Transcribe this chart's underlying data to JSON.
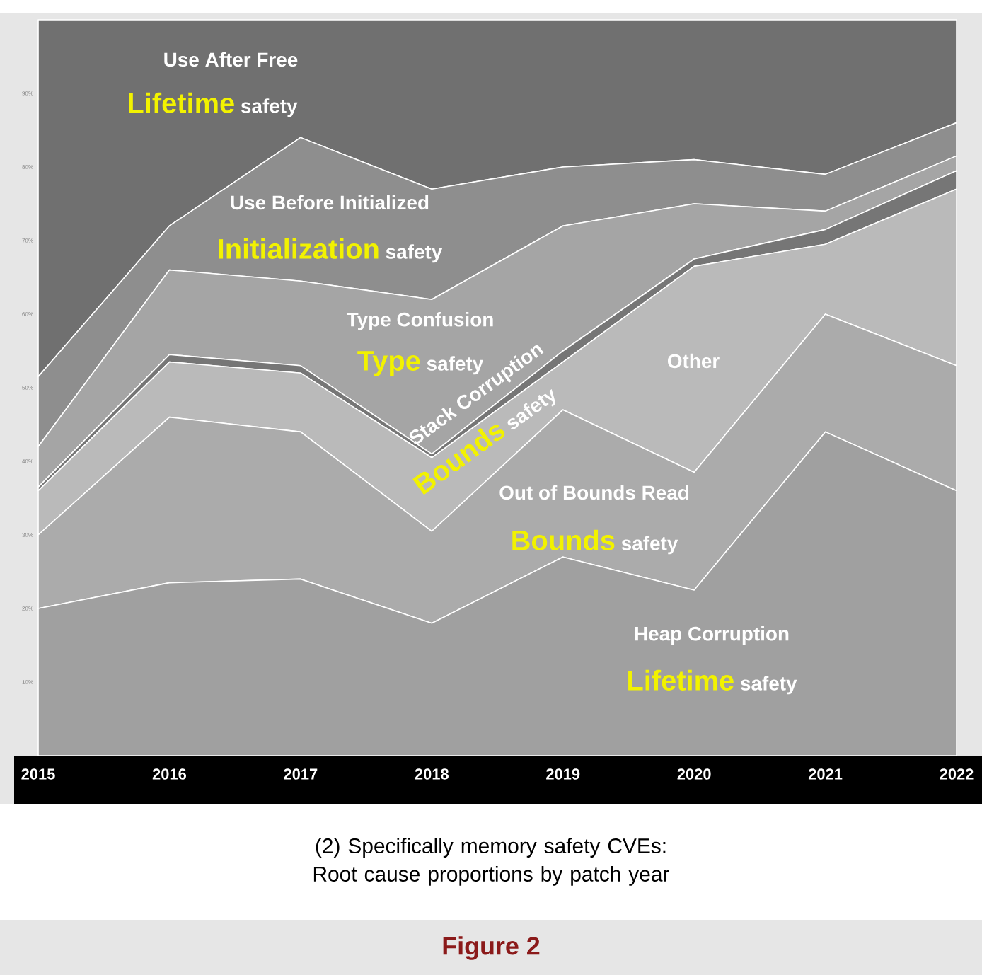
{
  "chart_data": {
    "type": "area",
    "stacked": true,
    "title": "Figure 2",
    "subtitle": "(2) Specifically memory safety CVEs: Root cause proportions by patch year",
    "x": [
      2015,
      2016,
      2017,
      2018,
      2019,
      2020,
      2021,
      2022
    ],
    "xlim": [
      2015,
      2022
    ],
    "xticks": [
      {
        "value": 2015,
        "label": "2015"
      },
      {
        "value": 2016,
        "label": "2016"
      },
      {
        "value": 2017,
        "label": "2017"
      },
      {
        "value": 2018,
        "label": "2018"
      },
      {
        "value": 2019,
        "label": "2019"
      },
      {
        "value": 2020,
        "label": "2020"
      },
      {
        "value": 2021,
        "label": "2021"
      },
      {
        "value": 2022,
        "label": "2022"
      }
    ],
    "ylim": [
      0,
      100
    ],
    "yticks": [
      {
        "value": 10,
        "label": "10%"
      },
      {
        "value": 20,
        "label": "20%"
      },
      {
        "value": 30,
        "label": "30%"
      },
      {
        "value": 40,
        "label": "40%"
      },
      {
        "value": 50,
        "label": "50%"
      },
      {
        "value": 60,
        "label": "60%"
      },
      {
        "value": 70,
        "label": "70%"
      },
      {
        "value": 80,
        "label": "80%"
      },
      {
        "value": 90,
        "label": "90%"
      }
    ],
    "series": [
      {
        "color": "#a0a0a0",
        "values": [
          20,
          23.5,
          24,
          18,
          27,
          22.5,
          44,
          36
        ]
      },
      {
        "color": "#ababab",
        "values": [
          10,
          22.5,
          20,
          12.5,
          20,
          16,
          16,
          17
        ]
      },
      {
        "color": "#bababa",
        "values": [
          6,
          7.5,
          8,
          10,
          6.5,
          28,
          9.5,
          24
        ]
      },
      {
        "color": "#767676",
        "values": [
          0.5,
          1,
          1,
          0.5,
          1.5,
          1,
          2,
          2.5
        ]
      },
      {
        "color": "#a5a5a5",
        "values": [
          5.5,
          11.5,
          11.5,
          21,
          17,
          7.5,
          2.5,
          2
        ]
      },
      {
        "color": "#8e8e8e",
        "values": [
          9.5,
          6,
          19.5,
          15,
          8,
          6,
          5,
          4.5
        ]
      },
      {
        "color": "#707070",
        "values": [
          48.5,
          28,
          16,
          23,
          20,
          19,
          21,
          14
        ]
      }
    ],
    "annotations": [
      "Use After Free",
      "**Lifetime** safety",
      "Use Before Initialized",
      "**Initialization** safety",
      "Type Confusion",
      "**Type** safety",
      "Stack Corruption",
      "**Bounds** safety",
      "Other",
      "Out of Bounds Read",
      "**Bounds** safety",
      "Heap Corruption",
      "**Lifetime** safety"
    ]
  }
}
